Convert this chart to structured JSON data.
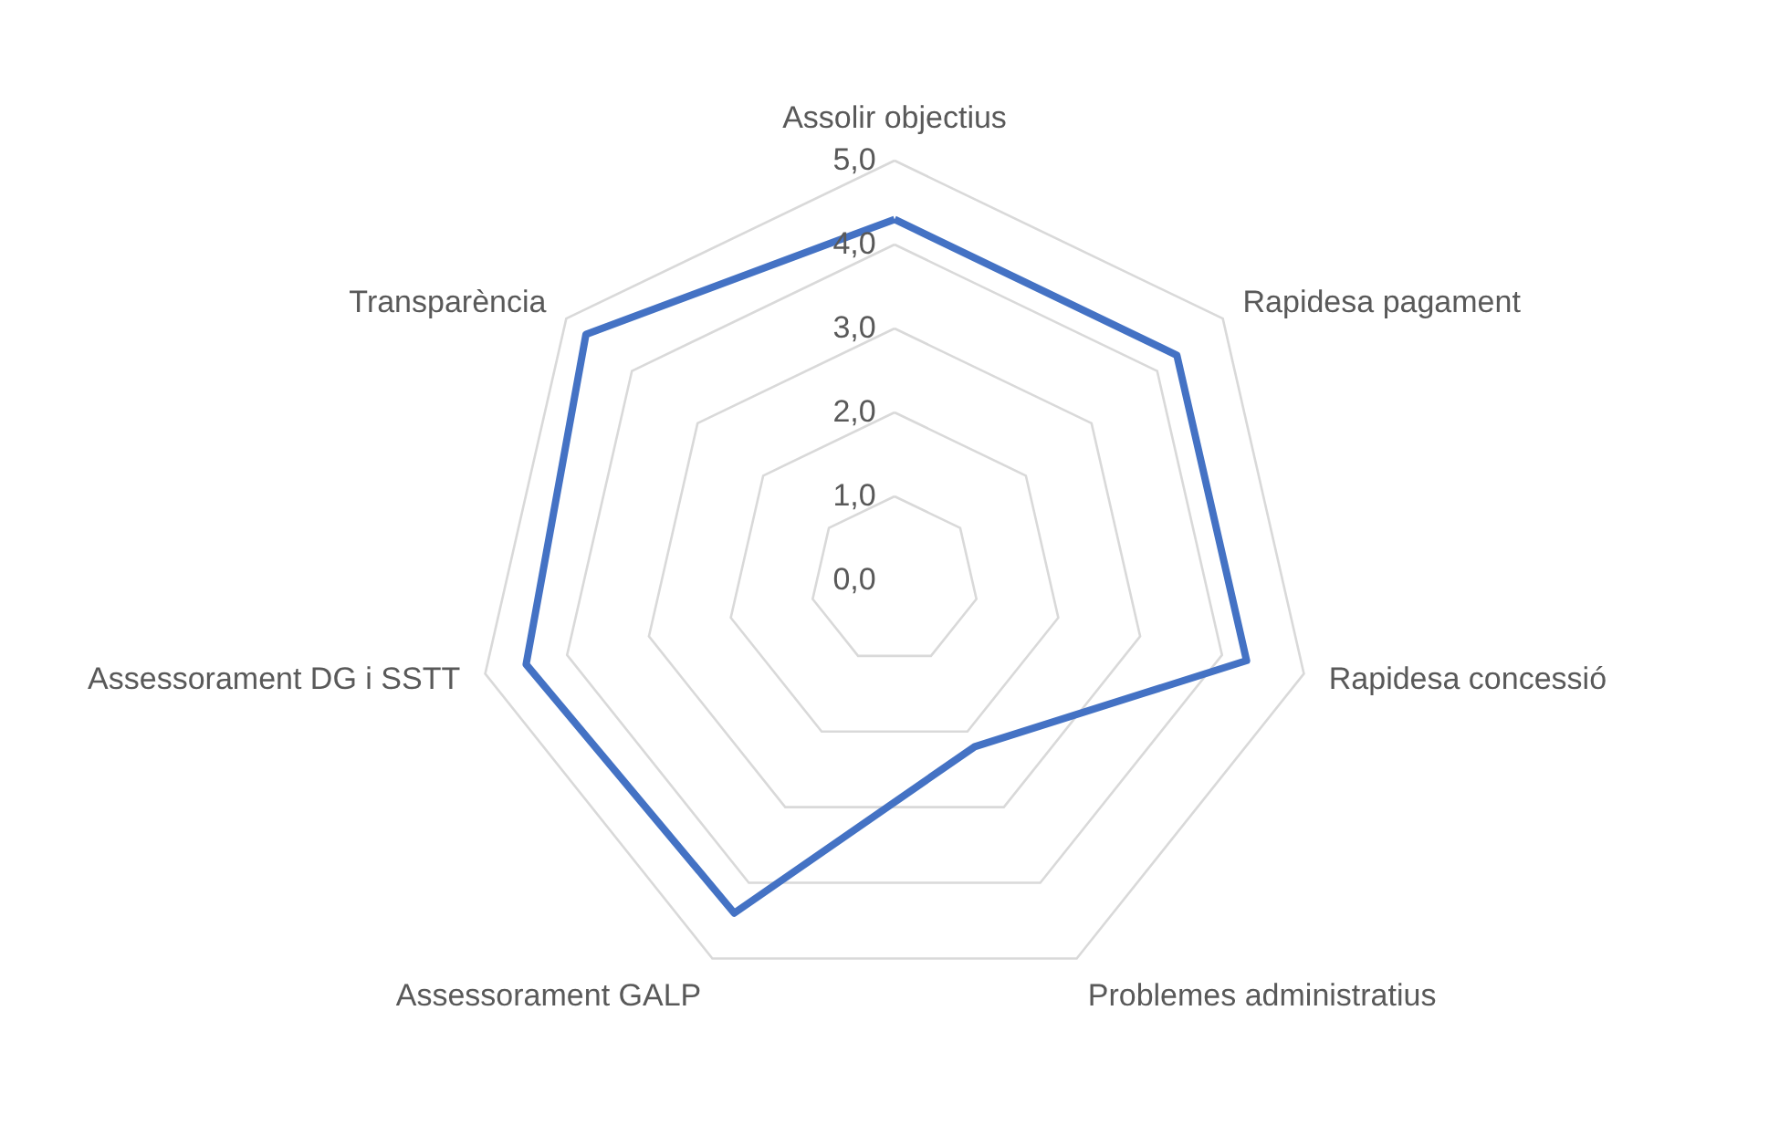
{
  "chart_data": {
    "type": "radar",
    "categories": [
      "Assolir objectius",
      "Rapidesa pagament",
      "Rapidesa concessió",
      "Problemes administratius",
      "Assessorament GALP",
      "Assessorament DG i SSTT",
      "Transparència"
    ],
    "series": [
      {
        "color": "#4472c4",
        "values": [
          4.3,
          4.3,
          4.3,
          2.2,
          4.4,
          4.5,
          4.7
        ]
      }
    ],
    "ylim": [
      0,
      5
    ],
    "yticks": [
      {
        "value": 0,
        "label": "0,0"
      },
      {
        "value": 1,
        "label": "1,0"
      },
      {
        "value": 2,
        "label": "2,0"
      },
      {
        "value": 3,
        "label": "3,0"
      },
      {
        "value": 4,
        "label": "4,0"
      },
      {
        "value": 5,
        "label": "5,0"
      }
    ],
    "grid": true
  }
}
